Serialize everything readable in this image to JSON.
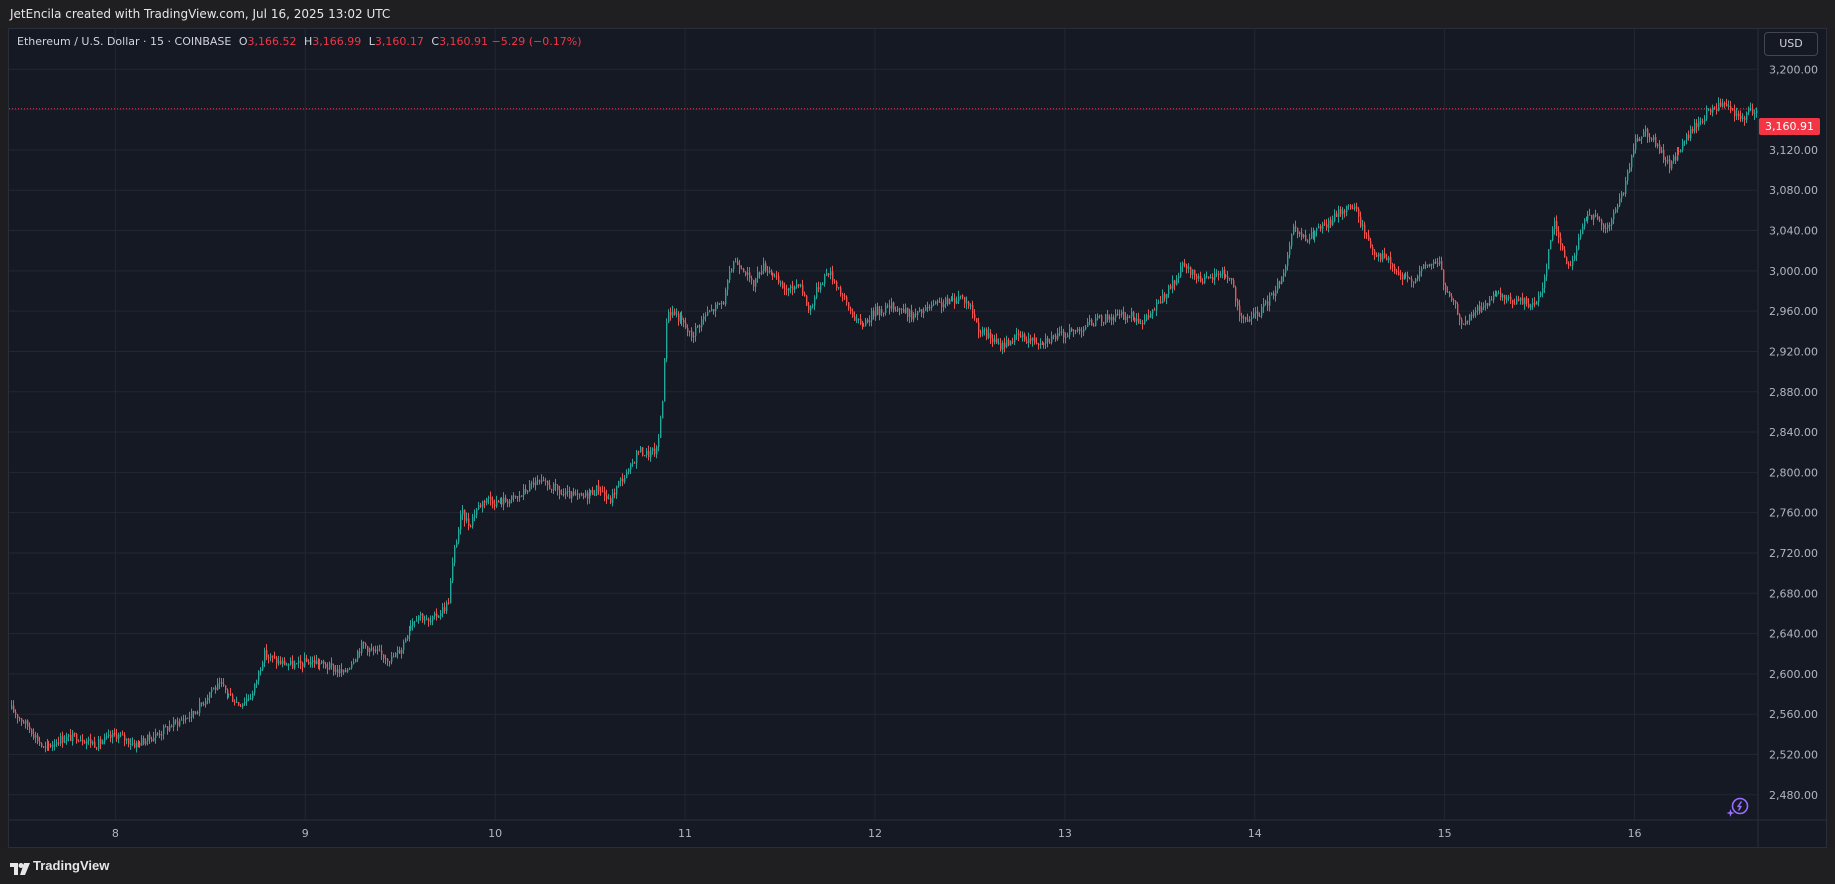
{
  "header": {
    "credit": "JetEncila created with TradingView.com, Jul 16, 2025 13:02 UTC"
  },
  "legend": {
    "symbol": "Ethereum / U.S. Dollar · 15 · COINBASE",
    "o_label": "O",
    "o_value": "3,166.52",
    "h_label": "H",
    "h_value": "3,166.99",
    "l_label": "L",
    "l_value": "3,160.17",
    "c_label": "C",
    "c_value": "3,160.91",
    "change": "−5.29 (−0.17%)"
  },
  "currency_button": "USD",
  "last_price": "3,160.91",
  "footer": {
    "brand": "TradingView"
  },
  "icons": {
    "logo": "tradingview-logo-icon",
    "assistant": "sparkle-assistant-icon"
  },
  "colors": {
    "up": "#26a69a",
    "down": "#ef5350",
    "price_line": "#f23645",
    "background": "#151924",
    "grid": "#232633"
  },
  "chart_data": {
    "type": "candlestick",
    "title": "Ethereum / U.S. Dollar · 15 · COINBASE",
    "interval": "15",
    "y_ticks": [
      2480,
      2520,
      2560,
      2600,
      2640,
      2680,
      2720,
      2760,
      2800,
      2840,
      2880,
      2920,
      2960,
      3000,
      3040,
      3080,
      3120,
      3160,
      3200
    ],
    "y_tick_labels": [
      "2,480.00",
      "2,520.00",
      "2,560.00",
      "2,600.00",
      "2,640.00",
      "2,680.00",
      "2,720.00",
      "2,760.00",
      "2,800.00",
      "2,840.00",
      "2,880.00",
      "2,920.00",
      "2,960.00",
      "3,000.00",
      "3,040.00",
      "3,080.00",
      "3,120.00",
      "3,160.00",
      "3,200.00"
    ],
    "y_tick_labels_shown": [
      "2,480.00",
      "2,520.00",
      "2,560.00",
      "2,600.00",
      "2,640.00",
      "2,680.00",
      "2,720.00",
      "2,760.00",
      "2,800.00",
      "2,840.00",
      "2,880.00",
      "2,920.00",
      "2,960.00",
      "3,000.00",
      "3,040.00",
      "3,080.00",
      "3,120.00",
      "3,200.00"
    ],
    "ylim": [
      2455,
      3240
    ],
    "x_day_labels": [
      "8",
      "9",
      "10",
      "11",
      "12",
      "13",
      "14",
      "15",
      "16"
    ],
    "x_range_days": [
      7.44,
      16.65
    ],
    "last_price": 3160.91,
    "close_path": [
      [
        7.45,
        2565
      ],
      [
        7.55,
        2545
      ],
      [
        7.62,
        2525
      ],
      [
        7.7,
        2535
      ],
      [
        7.8,
        2538
      ],
      [
        7.9,
        2530
      ],
      [
        8.0,
        2540
      ],
      [
        8.1,
        2530
      ],
      [
        8.2,
        2538
      ],
      [
        8.3,
        2550
      ],
      [
        8.4,
        2560
      ],
      [
        8.45,
        2570
      ],
      [
        8.5,
        2585
      ],
      [
        8.55,
        2588
      ],
      [
        8.65,
        2570
      ],
      [
        8.72,
        2580
      ],
      [
        8.78,
        2620
      ],
      [
        8.85,
        2612
      ],
      [
        8.95,
        2608
      ],
      [
        9.0,
        2612
      ],
      [
        9.05,
        2612
      ],
      [
        9.15,
        2605
      ],
      [
        9.2,
        2600
      ],
      [
        9.25,
        2615
      ],
      [
        9.3,
        2630
      ],
      [
        9.35,
        2622
      ],
      [
        9.45,
        2615
      ],
      [
        9.5,
        2625
      ],
      [
        9.55,
        2650
      ],
      [
        9.6,
        2660
      ],
      [
        9.65,
        2650
      ],
      [
        9.7,
        2660
      ],
      [
        9.75,
        2670
      ],
      [
        9.78,
        2720
      ],
      [
        9.82,
        2760
      ],
      [
        9.86,
        2748
      ],
      [
        9.9,
        2765
      ],
      [
        9.95,
        2775
      ],
      [
        10.0,
        2770
      ],
      [
        10.05,
        2772
      ],
      [
        10.12,
        2775
      ],
      [
        10.2,
        2790
      ],
      [
        10.25,
        2788
      ],
      [
        10.3,
        2785
      ],
      [
        10.35,
        2778
      ],
      [
        10.45,
        2775
      ],
      [
        10.5,
        2780
      ],
      [
        10.55,
        2785
      ],
      [
        10.6,
        2770
      ],
      [
        10.65,
        2790
      ],
      [
        10.7,
        2800
      ],
      [
        10.75,
        2822
      ],
      [
        10.8,
        2818
      ],
      [
        10.85,
        2822
      ],
      [
        10.88,
        2880
      ],
      [
        10.9,
        2960
      ],
      [
        10.94,
        2958
      ],
      [
        10.98,
        2950
      ],
      [
        11.03,
        2935
      ],
      [
        11.1,
        2955
      ],
      [
        11.2,
        2970
      ],
      [
        11.25,
        3010
      ],
      [
        11.3,
        3005
      ],
      [
        11.35,
        2985
      ],
      [
        11.4,
        3005
      ],
      [
        11.45,
        3000
      ],
      [
        11.5,
        2985
      ],
      [
        11.55,
        2980
      ],
      [
        11.6,
        2990
      ],
      [
        11.65,
        2960
      ],
      [
        11.7,
        2985
      ],
      [
        11.75,
        3000
      ],
      [
        11.8,
        2985
      ],
      [
        11.85,
        2965
      ],
      [
        11.92,
        2945
      ],
      [
        12.0,
        2960
      ],
      [
        12.1,
        2965
      ],
      [
        12.2,
        2955
      ],
      [
        12.3,
        2965
      ],
      [
        12.4,
        2970
      ],
      [
        12.45,
        2975
      ],
      [
        12.5,
        2965
      ],
      [
        12.55,
        2940
      ],
      [
        12.6,
        2935
      ],
      [
        12.65,
        2925
      ],
      [
        12.75,
        2935
      ],
      [
        12.85,
        2930
      ],
      [
        12.95,
        2935
      ],
      [
        13.05,
        2940
      ],
      [
        13.15,
        2950
      ],
      [
        13.25,
        2955
      ],
      [
        13.35,
        2955
      ],
      [
        13.42,
        2950
      ],
      [
        13.5,
        2970
      ],
      [
        13.58,
        2990
      ],
      [
        13.62,
        3005
      ],
      [
        13.68,
        2995
      ],
      [
        13.75,
        2990
      ],
      [
        13.82,
        3000
      ],
      [
        13.88,
        2990
      ],
      [
        13.92,
        2950
      ],
      [
        14.0,
        2955
      ],
      [
        14.05,
        2965
      ],
      [
        14.1,
        2980
      ],
      [
        14.15,
        3000
      ],
      [
        14.2,
        3040
      ],
      [
        14.27,
        3030
      ],
      [
        14.32,
        3040
      ],
      [
        14.38,
        3045
      ],
      [
        14.45,
        3060
      ],
      [
        14.52,
        3065
      ],
      [
        14.56,
        3045
      ],
      [
        14.62,
        3020
      ],
      [
        14.7,
        3010
      ],
      [
        14.75,
        2995
      ],
      [
        14.82,
        2990
      ],
      [
        14.9,
        3005
      ],
      [
        14.97,
        3010
      ],
      [
        15.0,
        2980
      ],
      [
        15.05,
        2965
      ],
      [
        15.1,
        2945
      ],
      [
        15.15,
        2960
      ],
      [
        15.2,
        2965
      ],
      [
        15.27,
        2975
      ],
      [
        15.35,
        2970
      ],
      [
        15.42,
        2970
      ],
      [
        15.47,
        2965
      ],
      [
        15.52,
        2990
      ],
      [
        15.57,
        3050
      ],
      [
        15.62,
        3020
      ],
      [
        15.65,
        3000
      ],
      [
        15.7,
        3030
      ],
      [
        15.75,
        3060
      ],
      [
        15.8,
        3050
      ],
      [
        15.85,
        3040
      ],
      [
        15.9,
        3060
      ],
      [
        15.95,
        3085
      ],
      [
        16.0,
        3130
      ],
      [
        16.05,
        3140
      ],
      [
        16.1,
        3130
      ],
      [
        16.12,
        3120
      ],
      [
        16.18,
        3105
      ],
      [
        16.25,
        3125
      ],
      [
        16.3,
        3140
      ],
      [
        16.35,
        3150
      ],
      [
        16.4,
        3160
      ],
      [
        16.45,
        3165
      ],
      [
        16.5,
        3160
      ],
      [
        16.55,
        3150
      ],
      [
        16.6,
        3158
      ],
      [
        16.64,
        3160.91
      ]
    ]
  }
}
